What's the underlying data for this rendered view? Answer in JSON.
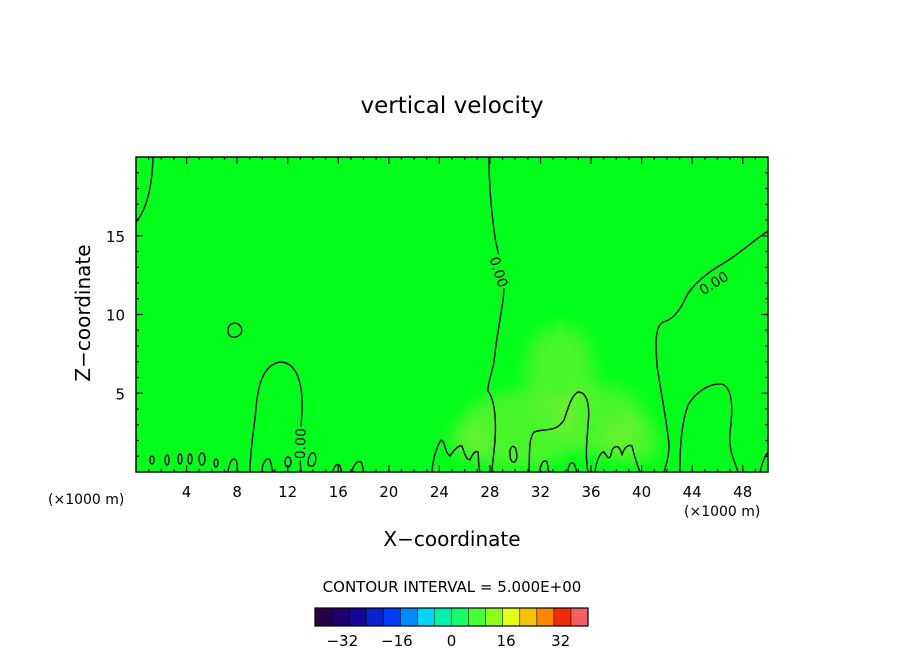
{
  "chart_data": {
    "type": "heatmap",
    "title": "vertical velocity",
    "xlabel": "X−coordinate",
    "ylabel": "Z−coordinate",
    "x_unit_label": "(×1000 m)",
    "x_unit_label_right": "(×1000 m)",
    "xlim": [
      0,
      50
    ],
    "ylim": [
      0,
      20
    ],
    "x_ticks": [
      4,
      8,
      12,
      16,
      20,
      24,
      28,
      32,
      36,
      40,
      44,
      48
    ],
    "x_tick_labels": [
      "4",
      "8",
      "12",
      "16",
      "20",
      "24",
      "28",
      "32",
      "36",
      "40",
      "44",
      "48"
    ],
    "y_ticks": [
      5,
      10,
      15
    ],
    "y_tick_labels": [
      "5",
      "10",
      "15"
    ],
    "background_value": 0,
    "contour_labels": [
      {
        "text": "0.00",
        "x": 28.7,
        "y": 12.7,
        "angle": 72
      },
      {
        "text": "0.00",
        "x": 45.7,
        "y": 12.0,
        "angle": -32
      },
      {
        "text": "0.00",
        "x": 13.0,
        "y": 1.8,
        "angle": -88
      }
    ],
    "contour_interval_text": "CONTOUR INTERVAL = 5.000E+00",
    "colorbar": {
      "min": -40,
      "max": 40,
      "step": 5,
      "tick_values": [
        -32,
        -16,
        0,
        16,
        32
      ],
      "tick_labels": [
        "−32",
        "−16",
        "0",
        "16",
        "32"
      ]
    },
    "colors": {
      "field": "#00ff1a",
      "warm_patch": "#7fef33",
      "contour": "#000000"
    }
  }
}
